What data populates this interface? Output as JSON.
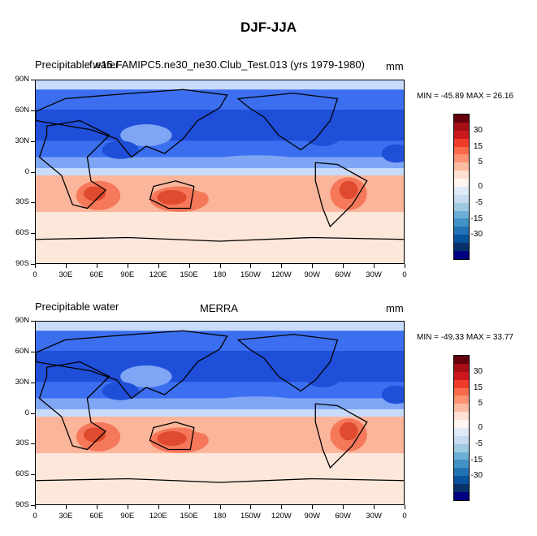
{
  "title": "DJF-JJA",
  "panels": [
    {
      "left_label": "Precipitable water",
      "center_label": "f.e15.FAMIPC5.ne30_ne30.Club_Test.013 (yrs 1979-1980)",
      "units": "mm",
      "minmax": "MIN = -45.89 MAX =  26.16"
    },
    {
      "left_label": "Precipitable water",
      "center_label": "MERRA",
      "units": "mm",
      "minmax": "MIN = -49.33 MAX =  33.77"
    }
  ],
  "lat_ticks": [
    "90N",
    "60N",
    "30N",
    "0",
    "30S",
    "60S",
    "90S"
  ],
  "lon_ticks": [
    "0",
    "30E",
    "60E",
    "90E",
    "120E",
    "150E",
    "180",
    "150W",
    "120W",
    "90W",
    "60W",
    "30W",
    "0"
  ],
  "colorbar": {
    "labels": [
      "30",
      "15",
      "5",
      "0",
      "-5",
      "-15",
      "-30"
    ],
    "colors": [
      "#67000d",
      "#a50f15",
      "#cb181d",
      "#ef3b2c",
      "#fb6a4a",
      "#fc9272",
      "#fcbba1",
      "#fee0d2",
      "#fff5f0",
      "#deebf7",
      "#c6dbef",
      "#9ecae1",
      "#6baed6",
      "#4292c6",
      "#2171b5",
      "#08519c",
      "#08306b",
      "#000080"
    ]
  },
  "field_colors": {
    "deep_blue": "#1f4ed8",
    "mid_blue": "#3b6ff0",
    "light_blue": "#7fa6f5",
    "pale_blue": "#c9dbfb",
    "pale": "#fde7db",
    "light_red": "#fbb59a",
    "mid_red": "#f5785a",
    "deep_red": "#e04a2f"
  }
}
